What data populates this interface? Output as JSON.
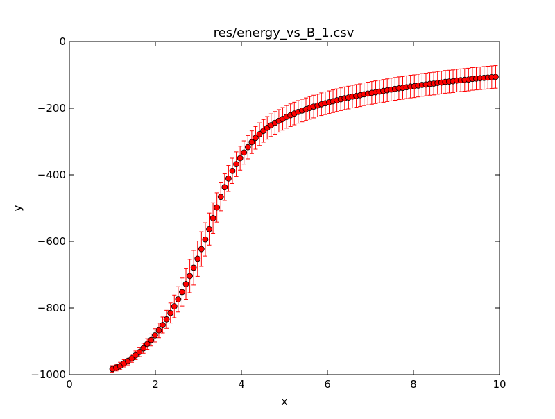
{
  "chart_data": {
    "type": "scatter",
    "title": "res/energy_vs_B_1.csv",
    "xlabel": "x",
    "ylabel": "y",
    "xlim": [
      0,
      10
    ],
    "ylim": [
      -1000,
      0
    ],
    "xticks": [
      0,
      2,
      4,
      6,
      8,
      10
    ],
    "xtick_labels": [
      "0",
      "2",
      "4",
      "6",
      "8",
      "10"
    ],
    "yticks": [
      0,
      -200,
      -400,
      -600,
      -800,
      -1000
    ],
    "ytick_labels": [
      "0",
      "−200",
      "−400",
      "−600",
      "−800",
      "−1000"
    ],
    "grid": false,
    "marker_color": "#ff0000",
    "errorbar_color": "#ff0000",
    "series": [
      {
        "x": [
          1.0,
          1.09,
          1.18,
          1.27,
          1.36,
          1.45,
          1.54,
          1.63,
          1.72,
          1.81,
          1.9,
          1.99,
          2.08,
          2.17,
          2.26,
          2.35,
          2.44,
          2.53,
          2.62,
          2.71,
          2.8,
          2.89,
          2.98,
          3.07,
          3.16,
          3.25,
          3.34,
          3.43,
          3.52,
          3.61,
          3.7,
          3.79,
          3.88,
          3.97,
          4.06,
          4.15,
          4.24,
          4.33,
          4.42,
          4.51,
          4.6,
          4.69,
          4.78,
          4.87,
          4.96,
          5.05,
          5.14,
          5.23,
          5.32,
          5.41,
          5.5,
          5.59,
          5.68,
          5.77,
          5.86,
          5.95,
          6.04,
          6.13,
          6.22,
          6.31,
          6.4,
          6.49,
          6.58,
          6.67,
          6.76,
          6.85,
          6.94,
          7.03,
          7.12,
          7.21,
          7.3,
          7.39,
          7.48,
          7.57,
          7.66,
          7.75,
          7.84,
          7.93,
          8.02,
          8.11,
          8.2,
          8.29,
          8.38,
          8.47,
          8.56,
          8.65,
          8.74,
          8.83,
          8.92,
          9.01,
          9.1,
          9.19,
          9.28,
          9.37,
          9.46,
          9.55,
          9.64,
          9.73,
          9.82,
          9.91
        ],
        "y": [
          -983,
          -979,
          -974,
          -966,
          -959,
          -951,
          -942,
          -932,
          -921,
          -908,
          -896,
          -882,
          -867,
          -851,
          -834,
          -815,
          -795,
          -774,
          -752,
          -728,
          -704,
          -679,
          -652,
          -623,
          -594,
          -563,
          -530,
          -498,
          -466,
          -437,
          -411,
          -388,
          -368,
          -350,
          -333,
          -317,
          -302,
          -289,
          -278,
          -268,
          -259,
          -251,
          -244,
          -238,
          -232,
          -226,
          -221,
          -216,
          -211,
          -207,
          -203,
          -199,
          -195,
          -192,
          -188,
          -185,
          -182,
          -179,
          -176,
          -173,
          -170,
          -168,
          -165,
          -163,
          -161,
          -158,
          -156,
          -154,
          -152,
          -150,
          -148,
          -146,
          -144,
          -142,
          -140,
          -139,
          -137,
          -135,
          -134,
          -132,
          -130,
          -129,
          -127,
          -126,
          -124,
          -123,
          -121,
          -120,
          -119,
          -117,
          -116,
          -115,
          -114,
          -112,
          -111,
          -110,
          -109,
          -108,
          -107,
          -106
        ],
        "yerr": [
          10,
          10,
          11,
          11,
          12,
          12,
          13,
          14,
          15,
          16,
          18,
          20,
          22,
          24,
          27,
          30,
          34,
          38,
          42,
          46,
          50,
          52,
          53,
          52,
          50,
          48,
          46,
          44,
          42,
          40,
          39,
          38,
          37,
          36,
          35,
          35,
          34,
          34,
          34,
          34,
          34,
          34,
          34,
          34,
          34,
          34,
          34,
          34,
          34,
          34,
          34,
          34,
          34,
          34,
          34,
          34,
          34,
          34,
          34,
          34,
          34,
          34,
          34,
          34,
          34,
          34,
          34,
          34,
          34,
          34,
          34,
          34,
          34,
          34,
          34,
          34,
          34,
          34,
          34,
          34,
          34,
          34,
          34,
          34,
          34,
          34,
          34,
          34,
          34,
          34,
          34,
          34,
          34,
          34,
          34,
          34,
          34,
          34,
          34,
          34
        ]
      }
    ]
  }
}
